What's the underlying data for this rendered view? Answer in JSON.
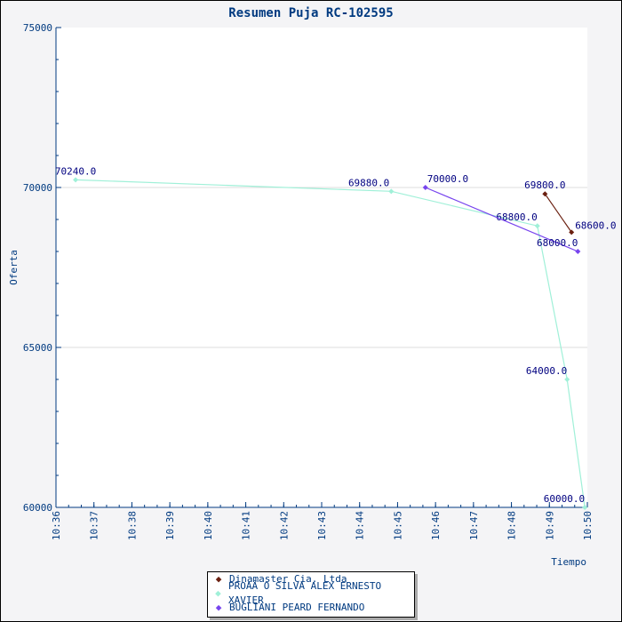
{
  "chart_data": {
    "type": "line",
    "title": "Resumen Puja RC-102595",
    "xlabel": "Tiempo",
    "ylabel": "Oferta",
    "ylim": [
      60000,
      75000
    ],
    "yticks": [
      "60000",
      "65000",
      "70000",
      "75000"
    ],
    "xticks": [
      "10:36",
      "10:37",
      "10:38",
      "10:39",
      "10:40",
      "10:41",
      "10:42",
      "10:43",
      "10:44",
      "10:45",
      "10:46",
      "10:47",
      "10:48",
      "10:49",
      "10:50"
    ],
    "xlim": [
      "10:36",
      "10:50"
    ],
    "grid": "horizontal",
    "legend_placement": "bottom-center",
    "series": [
      {
        "name": "Dinamaster Cia. Ltda",
        "color": "#6b2010",
        "points": [
          [
            "10:48:53",
            69800
          ],
          [
            "10:49:35",
            68600
          ]
        ],
        "labels": [
          "69800.0",
          "68600.0"
        ]
      },
      {
        "name": "PROAÃ O SILVA ALEX ERNESTO XAVIER",
        "color": "#a0f0d8",
        "points": [
          [
            "10:36:31",
            70240
          ],
          [
            "10:44:50",
            69880
          ],
          [
            "10:48:41",
            68800
          ],
          [
            "10:49:28",
            64000
          ],
          [
            "10:49:56",
            60000
          ]
        ],
        "labels": [
          "70240.0",
          "69880.0",
          "68800.0",
          "64000.0",
          "60000.0"
        ]
      },
      {
        "name": "BUGLIANI PEARD FERNANDO",
        "color": "#7744ee",
        "points": [
          [
            "10:45:44",
            70000
          ],
          [
            "10:49:45",
            68000
          ]
        ],
        "labels": [
          "70000.0",
          "68000.0"
        ]
      }
    ]
  }
}
